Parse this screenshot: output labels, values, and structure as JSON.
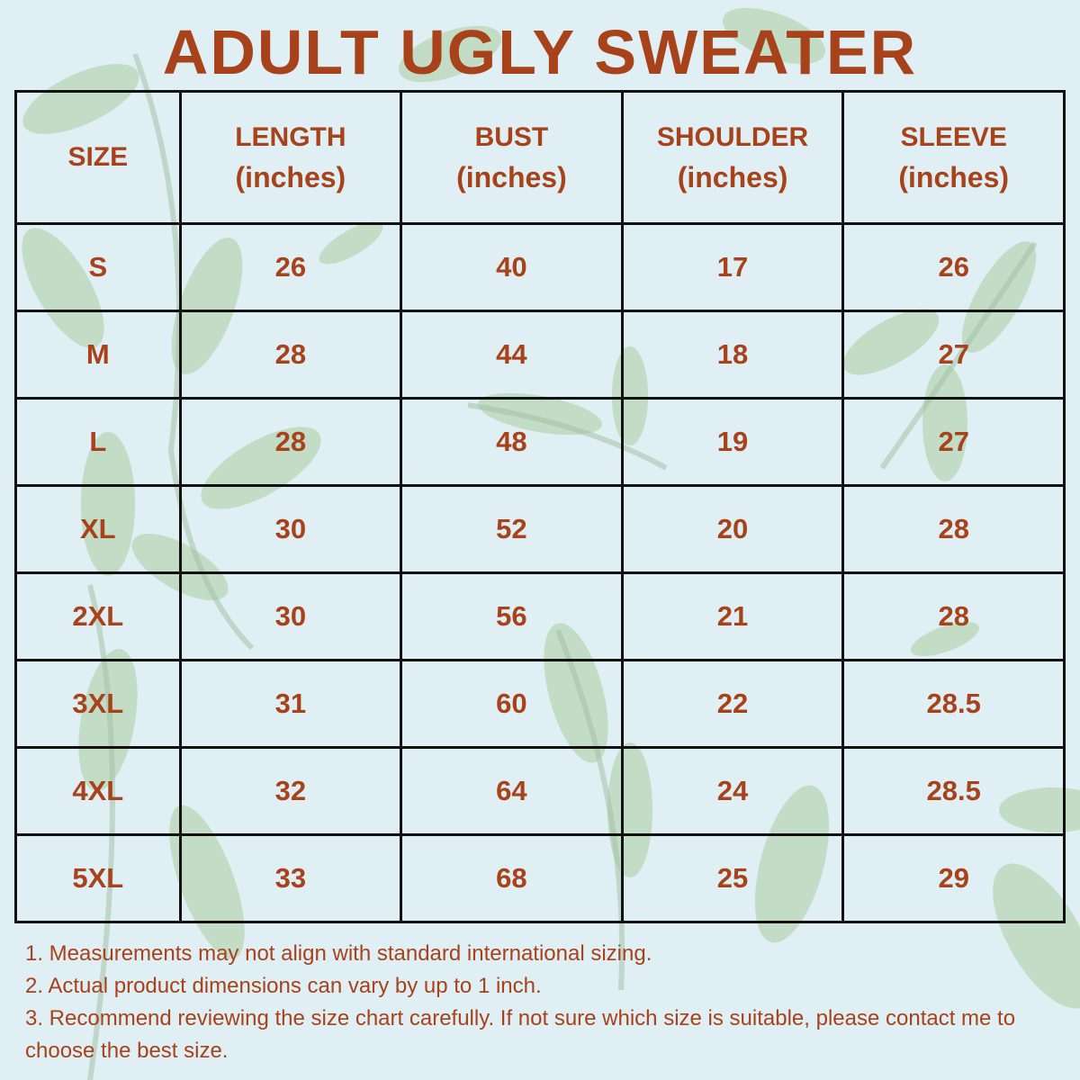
{
  "title": "ADULT UGLY SWEATER",
  "headers": [
    {
      "label": "SIZE",
      "unit": ""
    },
    {
      "label": "LENGTH",
      "unit": "(inches)"
    },
    {
      "label": "BUST",
      "unit": "(inches)"
    },
    {
      "label": "SHOULDER",
      "unit": "(inches)"
    },
    {
      "label": "SLEEVE",
      "unit": "(inches)"
    }
  ],
  "rows": [
    [
      "S",
      "26",
      "40",
      "17",
      "26"
    ],
    [
      "M",
      "28",
      "44",
      "18",
      "27"
    ],
    [
      "L",
      "28",
      "48",
      "19",
      "27"
    ],
    [
      "XL",
      "30",
      "52",
      "20",
      "28"
    ],
    [
      "2XL",
      "30",
      "56",
      "21",
      "28"
    ],
    [
      "3XL",
      "31",
      "60",
      "22",
      "28.5"
    ],
    [
      "4XL",
      "32",
      "64",
      "24",
      "28.5"
    ],
    [
      "5XL",
      "33",
      "68",
      "25",
      "29"
    ]
  ],
  "notes": [
    "1. Measurements may not align with standard international sizing.",
    "2. Actual product dimensions can vary by up to 1 inch.",
    "3. Recommend reviewing the size chart carefully. If not sure which size is suitable, please contact me to choose the best size."
  ],
  "colors": {
    "text": "#a8421b",
    "background": "#dfeff3",
    "grid": "#111111",
    "leaf": "#a9cca0"
  }
}
